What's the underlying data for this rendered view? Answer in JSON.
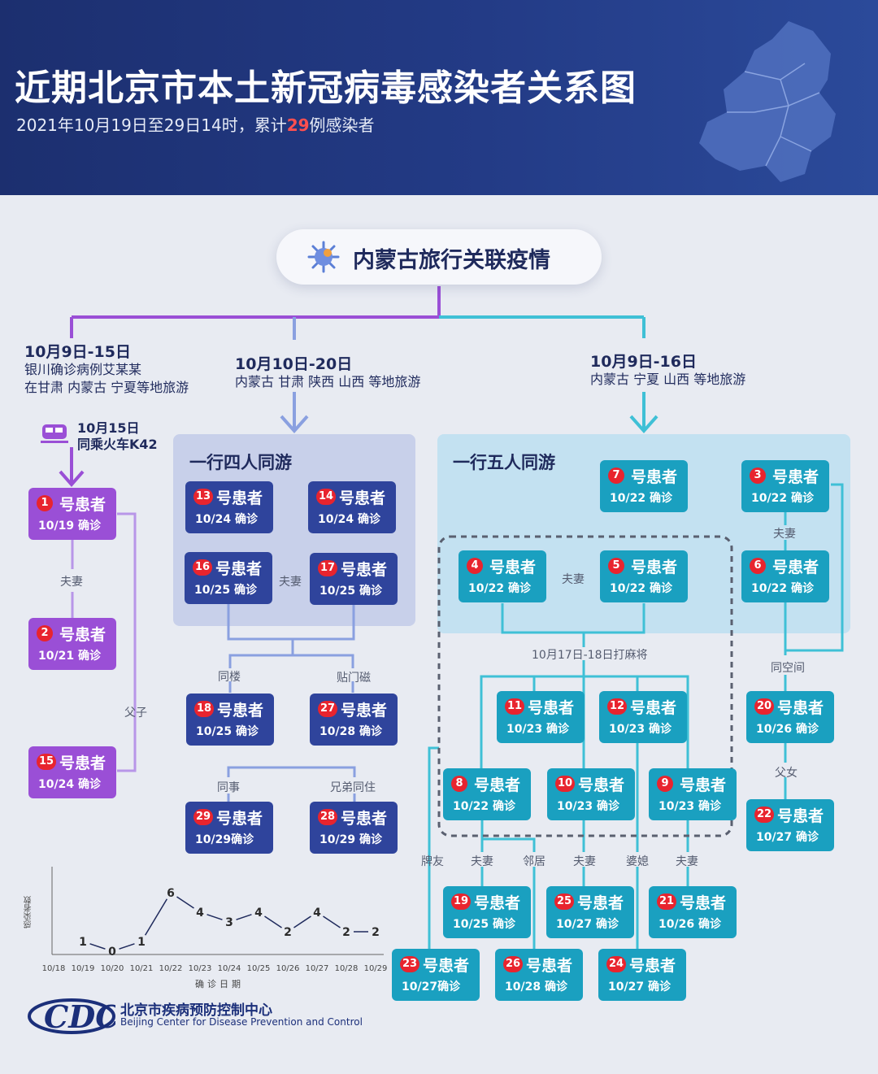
{
  "header": {
    "title": "近期北京市本土新冠病毒感染者关系图",
    "subtitle_prefix": "2021年10月19日至29日14时，累计",
    "subtitle_count": "29",
    "subtitle_suffix": "例感染者"
  },
  "pill": {
    "label": "内蒙古旅行关联疫情"
  },
  "branches": {
    "left": {
      "date": "10月9日-15日",
      "line1": "银川确诊病例艾某某",
      "line2": "在甘肃 内蒙古 宁夏等地旅游"
    },
    "train": {
      "date": "10月15日",
      "text": "同乘火车K42"
    },
    "middle": {
      "date": "10月10日-20日",
      "text": "内蒙古 甘肃 陕西 山西 等地旅游"
    },
    "right": {
      "date": "10月9日-16日",
      "text": "内蒙古 宁夏 山西 等地旅游"
    }
  },
  "groups": {
    "four": "一行四人同游",
    "five": "一行五人同游"
  },
  "suffix": "号患者",
  "patients": [
    {
      "id": "p1",
      "num": "1",
      "date": "10/19 确诊"
    },
    {
      "id": "p2",
      "num": "2",
      "date": "10/21 确诊"
    },
    {
      "id": "p15",
      "num": "15",
      "date": "10/24 确诊"
    },
    {
      "id": "p13",
      "num": "13",
      "date": "10/24 确诊"
    },
    {
      "id": "p14",
      "num": "14",
      "date": "10/24 确诊"
    },
    {
      "id": "p16",
      "num": "16",
      "date": "10/25 确诊"
    },
    {
      "id": "p17",
      "num": "17",
      "date": "10/25 确诊"
    },
    {
      "id": "p18",
      "num": "18",
      "date": "10/25 确诊"
    },
    {
      "id": "p27",
      "num": "27",
      "date": "10/28 确诊"
    },
    {
      "id": "p29",
      "num": "29",
      "date": "10/29确诊"
    },
    {
      "id": "p28",
      "num": "28",
      "date": "10/29 确诊"
    },
    {
      "id": "p7",
      "num": "7",
      "date": "10/22 确诊"
    },
    {
      "id": "p3",
      "num": "3",
      "date": "10/22 确诊"
    },
    {
      "id": "p4",
      "num": "4",
      "date": "10/22 确诊"
    },
    {
      "id": "p5",
      "num": "5",
      "date": "10/22 确诊"
    },
    {
      "id": "p6",
      "num": "6",
      "date": "10/22 确诊"
    },
    {
      "id": "p11",
      "num": "11",
      "date": "10/23 确诊"
    },
    {
      "id": "p12",
      "num": "12",
      "date": "10/23 确诊"
    },
    {
      "id": "p20",
      "num": "20",
      "date": "10/26 确诊"
    },
    {
      "id": "p8",
      "num": "8",
      "date": "10/22 确诊"
    },
    {
      "id": "p10",
      "num": "10",
      "date": "10/23 确诊"
    },
    {
      "id": "p9",
      "num": "9",
      "date": "10/23 确诊"
    },
    {
      "id": "p22",
      "num": "22",
      "date": "10/27 确诊"
    },
    {
      "id": "p19",
      "num": "19",
      "date": "10/25 确诊"
    },
    {
      "id": "p25",
      "num": "25",
      "date": "10/27 确诊"
    },
    {
      "id": "p21",
      "num": "21",
      "date": "10/26 确诊"
    },
    {
      "id": "p23",
      "num": "23",
      "date": "10/27确诊"
    },
    {
      "id": "p26",
      "num": "26",
      "date": "10/28 确诊"
    },
    {
      "id": "p24",
      "num": "24",
      "date": "10/27 确诊"
    }
  ],
  "relations": {
    "couple": "夫妻",
    "father_son": "父子",
    "same_building": "同楼",
    "stickers": "贴门磁",
    "colleague": "同事",
    "brothers": "兄弟同住",
    "mahjong": "10月17日-18日打麻将",
    "same_space": "同空间",
    "father_daughter": "父女",
    "card_friend": "牌友",
    "neighbor": "邻居",
    "in_laws": "婆媳"
  },
  "chart_data": {
    "type": "line",
    "x": [
      "10/18",
      "10/19",
      "10/20",
      "10/21",
      "10/22",
      "10/23",
      "10/24",
      "10/25",
      "10/26",
      "10/27",
      "10/28",
      "10/29"
    ],
    "values": [
      null,
      1,
      0,
      1,
      6,
      4,
      3,
      4,
      2,
      4,
      2,
      2
    ],
    "ylabel": "感染者数",
    "xlabel": "确诊日期",
    "color": "#1f2a5c"
  },
  "logo": {
    "cn": "北京市疾病预防控制中心",
    "en": "Beijing Center for Disease Prevention and Control",
    "mark": "CDC"
  }
}
